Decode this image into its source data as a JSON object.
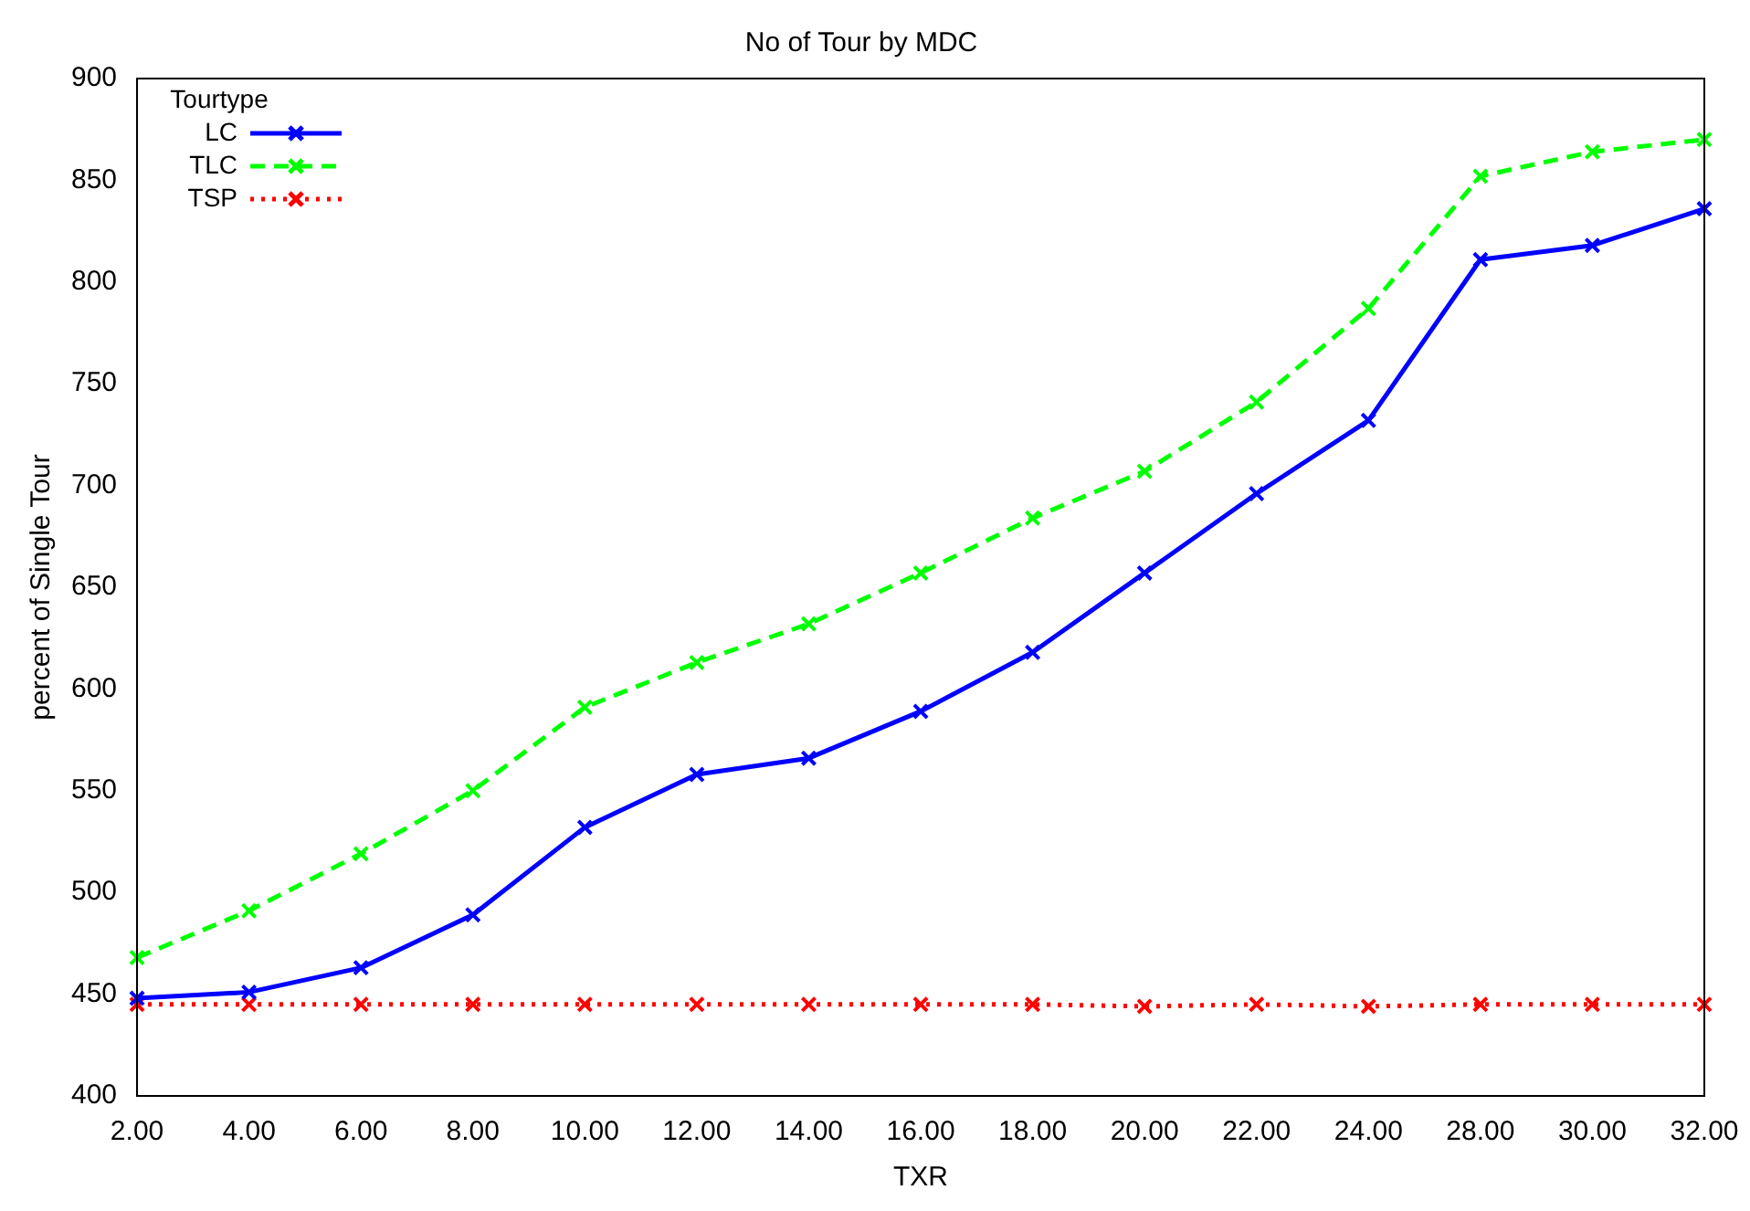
{
  "chart_data": {
    "type": "line",
    "title": "No of Tour by MDC",
    "xlabel": "TXR",
    "ylabel": "percent of Single Tour",
    "legend_title": "Tourtype",
    "legend": "top left",
    "grid": false,
    "categories": [
      "2.00",
      "4.00",
      "6.00",
      "8.00",
      "10.00",
      "12.00",
      "14.00",
      "16.00",
      "18.00",
      "20.00",
      "22.00",
      "24.00",
      "28.00",
      "30.00",
      "32.00"
    ],
    "ylim": [
      400,
      900
    ],
    "yticks": [
      400,
      450,
      500,
      550,
      600,
      650,
      700,
      750,
      800,
      850,
      900
    ],
    "series": [
      {
        "name": "LC",
        "color": "#0000ff",
        "line_style": "solid",
        "marker": "cross",
        "values": [
          448,
          451,
          463,
          489,
          532,
          558,
          566,
          589,
          618,
          657,
          696,
          732,
          811,
          818,
          836
        ]
      },
      {
        "name": "TLC",
        "color": "#00ff00",
        "line_style": "dashed",
        "marker": "cross",
        "values": [
          468,
          491,
          519,
          550,
          591,
          613,
          632,
          657,
          684,
          707,
          741,
          787,
          852,
          864,
          870
        ]
      },
      {
        "name": "TSP",
        "color": "#ff0000",
        "line_style": "dotted",
        "marker": "cross",
        "values": [
          445,
          445,
          445,
          445,
          445,
          445,
          445,
          445,
          445,
          444,
          445,
          444,
          445,
          445,
          445
        ]
      }
    ]
  }
}
